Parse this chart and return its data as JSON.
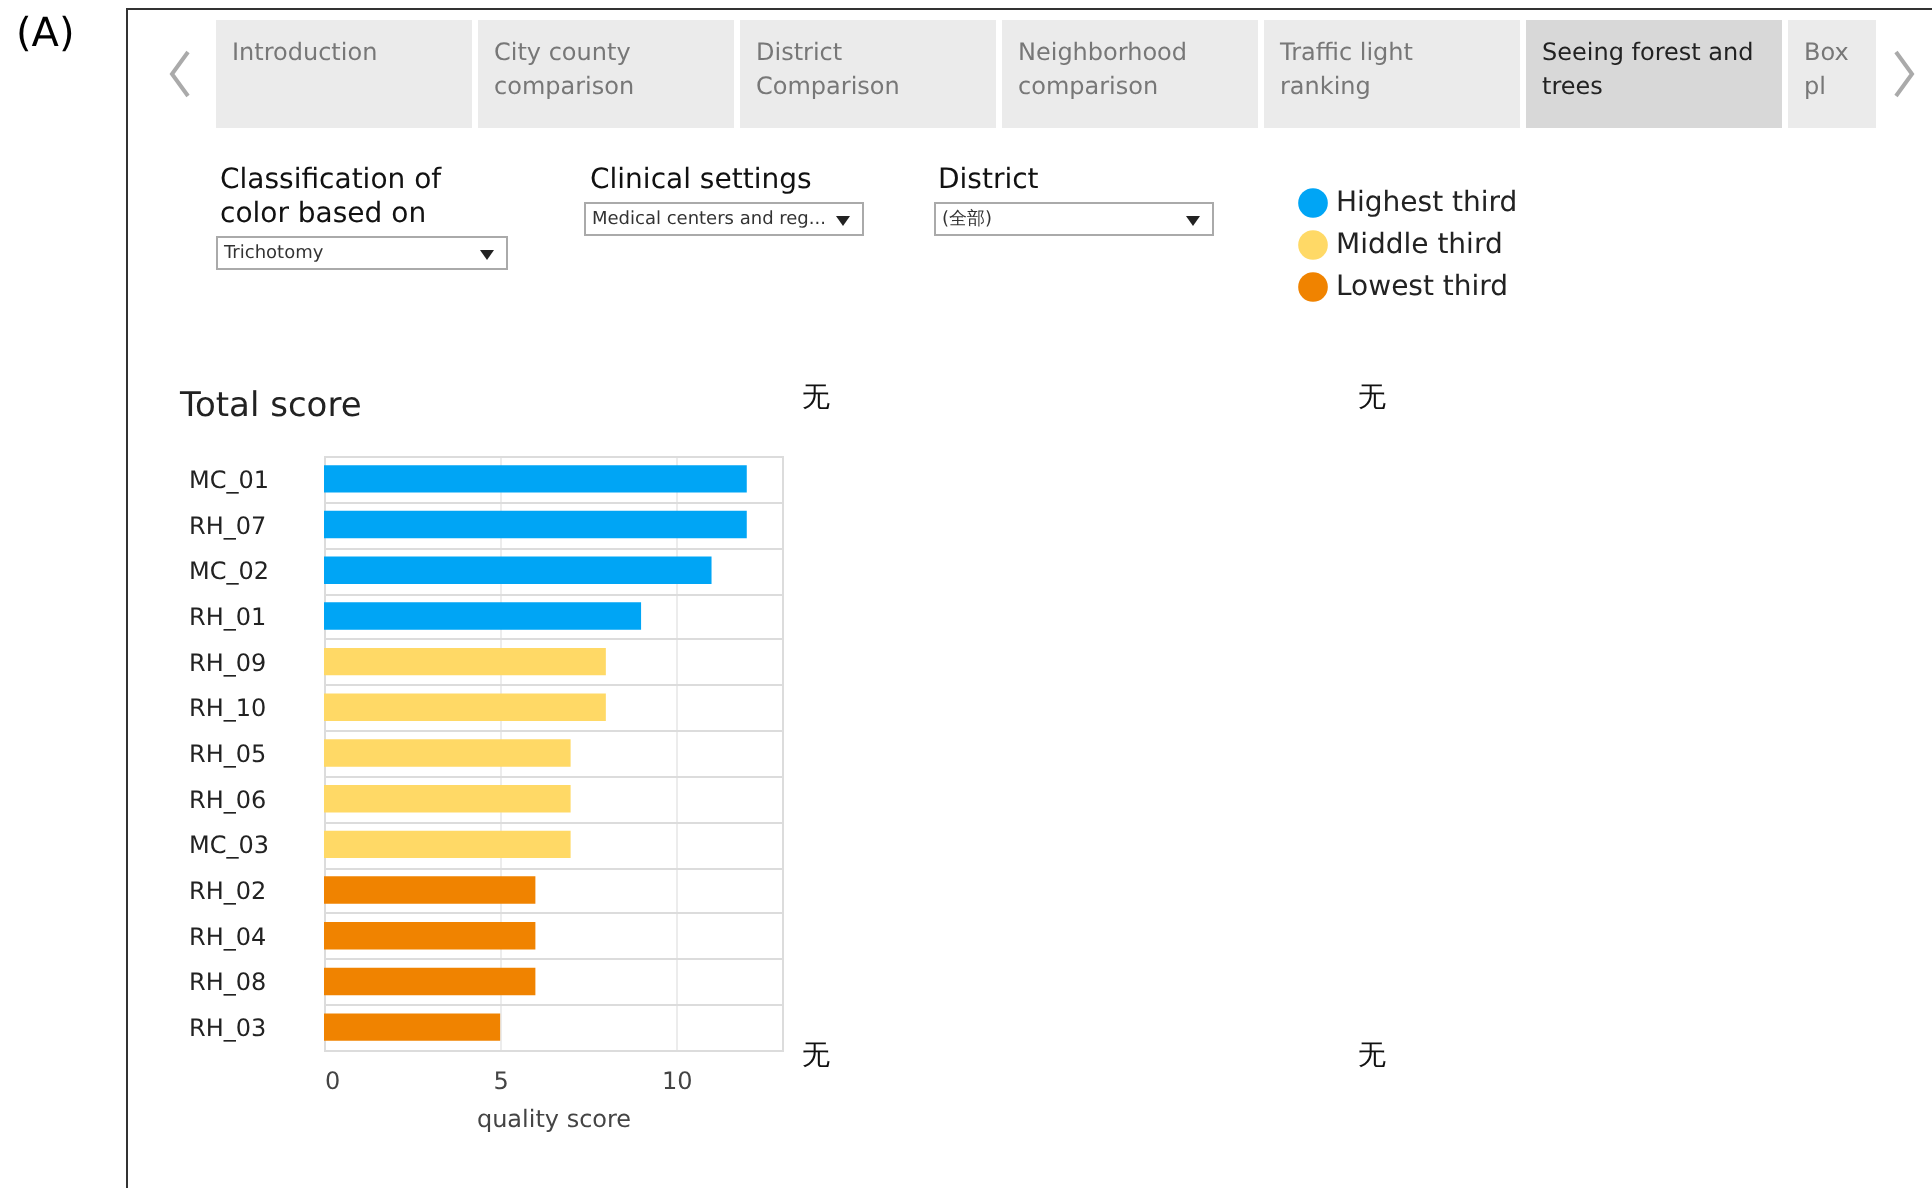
{
  "chart_data": {
    "type": "bar",
    "orientation": "horizontal",
    "title": "Total score",
    "xlabel": "quality score",
    "categories": [
      "MC_01",
      "RH_07",
      "MC_02",
      "RH_01",
      "RH_09",
      "RH_10",
      "RH_05",
      "RH_06",
      "MC_03",
      "RH_02",
      "RH_04",
      "RH_08",
      "RH_03"
    ],
    "series": [
      {
        "name": "Highest third",
        "color": "#00a5f5",
        "values": [
          12,
          12,
          11,
          9,
          null,
          null,
          null,
          null,
          null,
          null,
          null,
          null,
          null
        ]
      },
      {
        "name": "Middle third",
        "color": "#ffd966",
        "values": [
          null,
          null,
          null,
          null,
          8,
          8,
          7,
          7,
          7,
          null,
          null,
          null,
          null
        ]
      },
      {
        "name": "Lowest third",
        "color": "#f08300",
        "values": [
          null,
          null,
          null,
          null,
          null,
          null,
          null,
          null,
          null,
          6,
          6,
          6,
          5
        ]
      }
    ],
    "xlim": [
      0,
      13
    ],
    "xticks": [
      0,
      5,
      10
    ],
    "grid": true,
    "legend": "top right",
    "annotations": [
      "(A)",
      "Introduction",
      "City county comparison",
      "District Comparison",
      "Neighborhood comparison",
      "Traffic light ranking",
      "Seeing forest and trees",
      "Box pl",
      "Classification of color based on",
      "Trichotomy",
      "Clinical settings",
      "Medical centers and reg...",
      "District",
      "(全部)",
      "无",
      "无",
      "无",
      "无"
    ]
  }
}
